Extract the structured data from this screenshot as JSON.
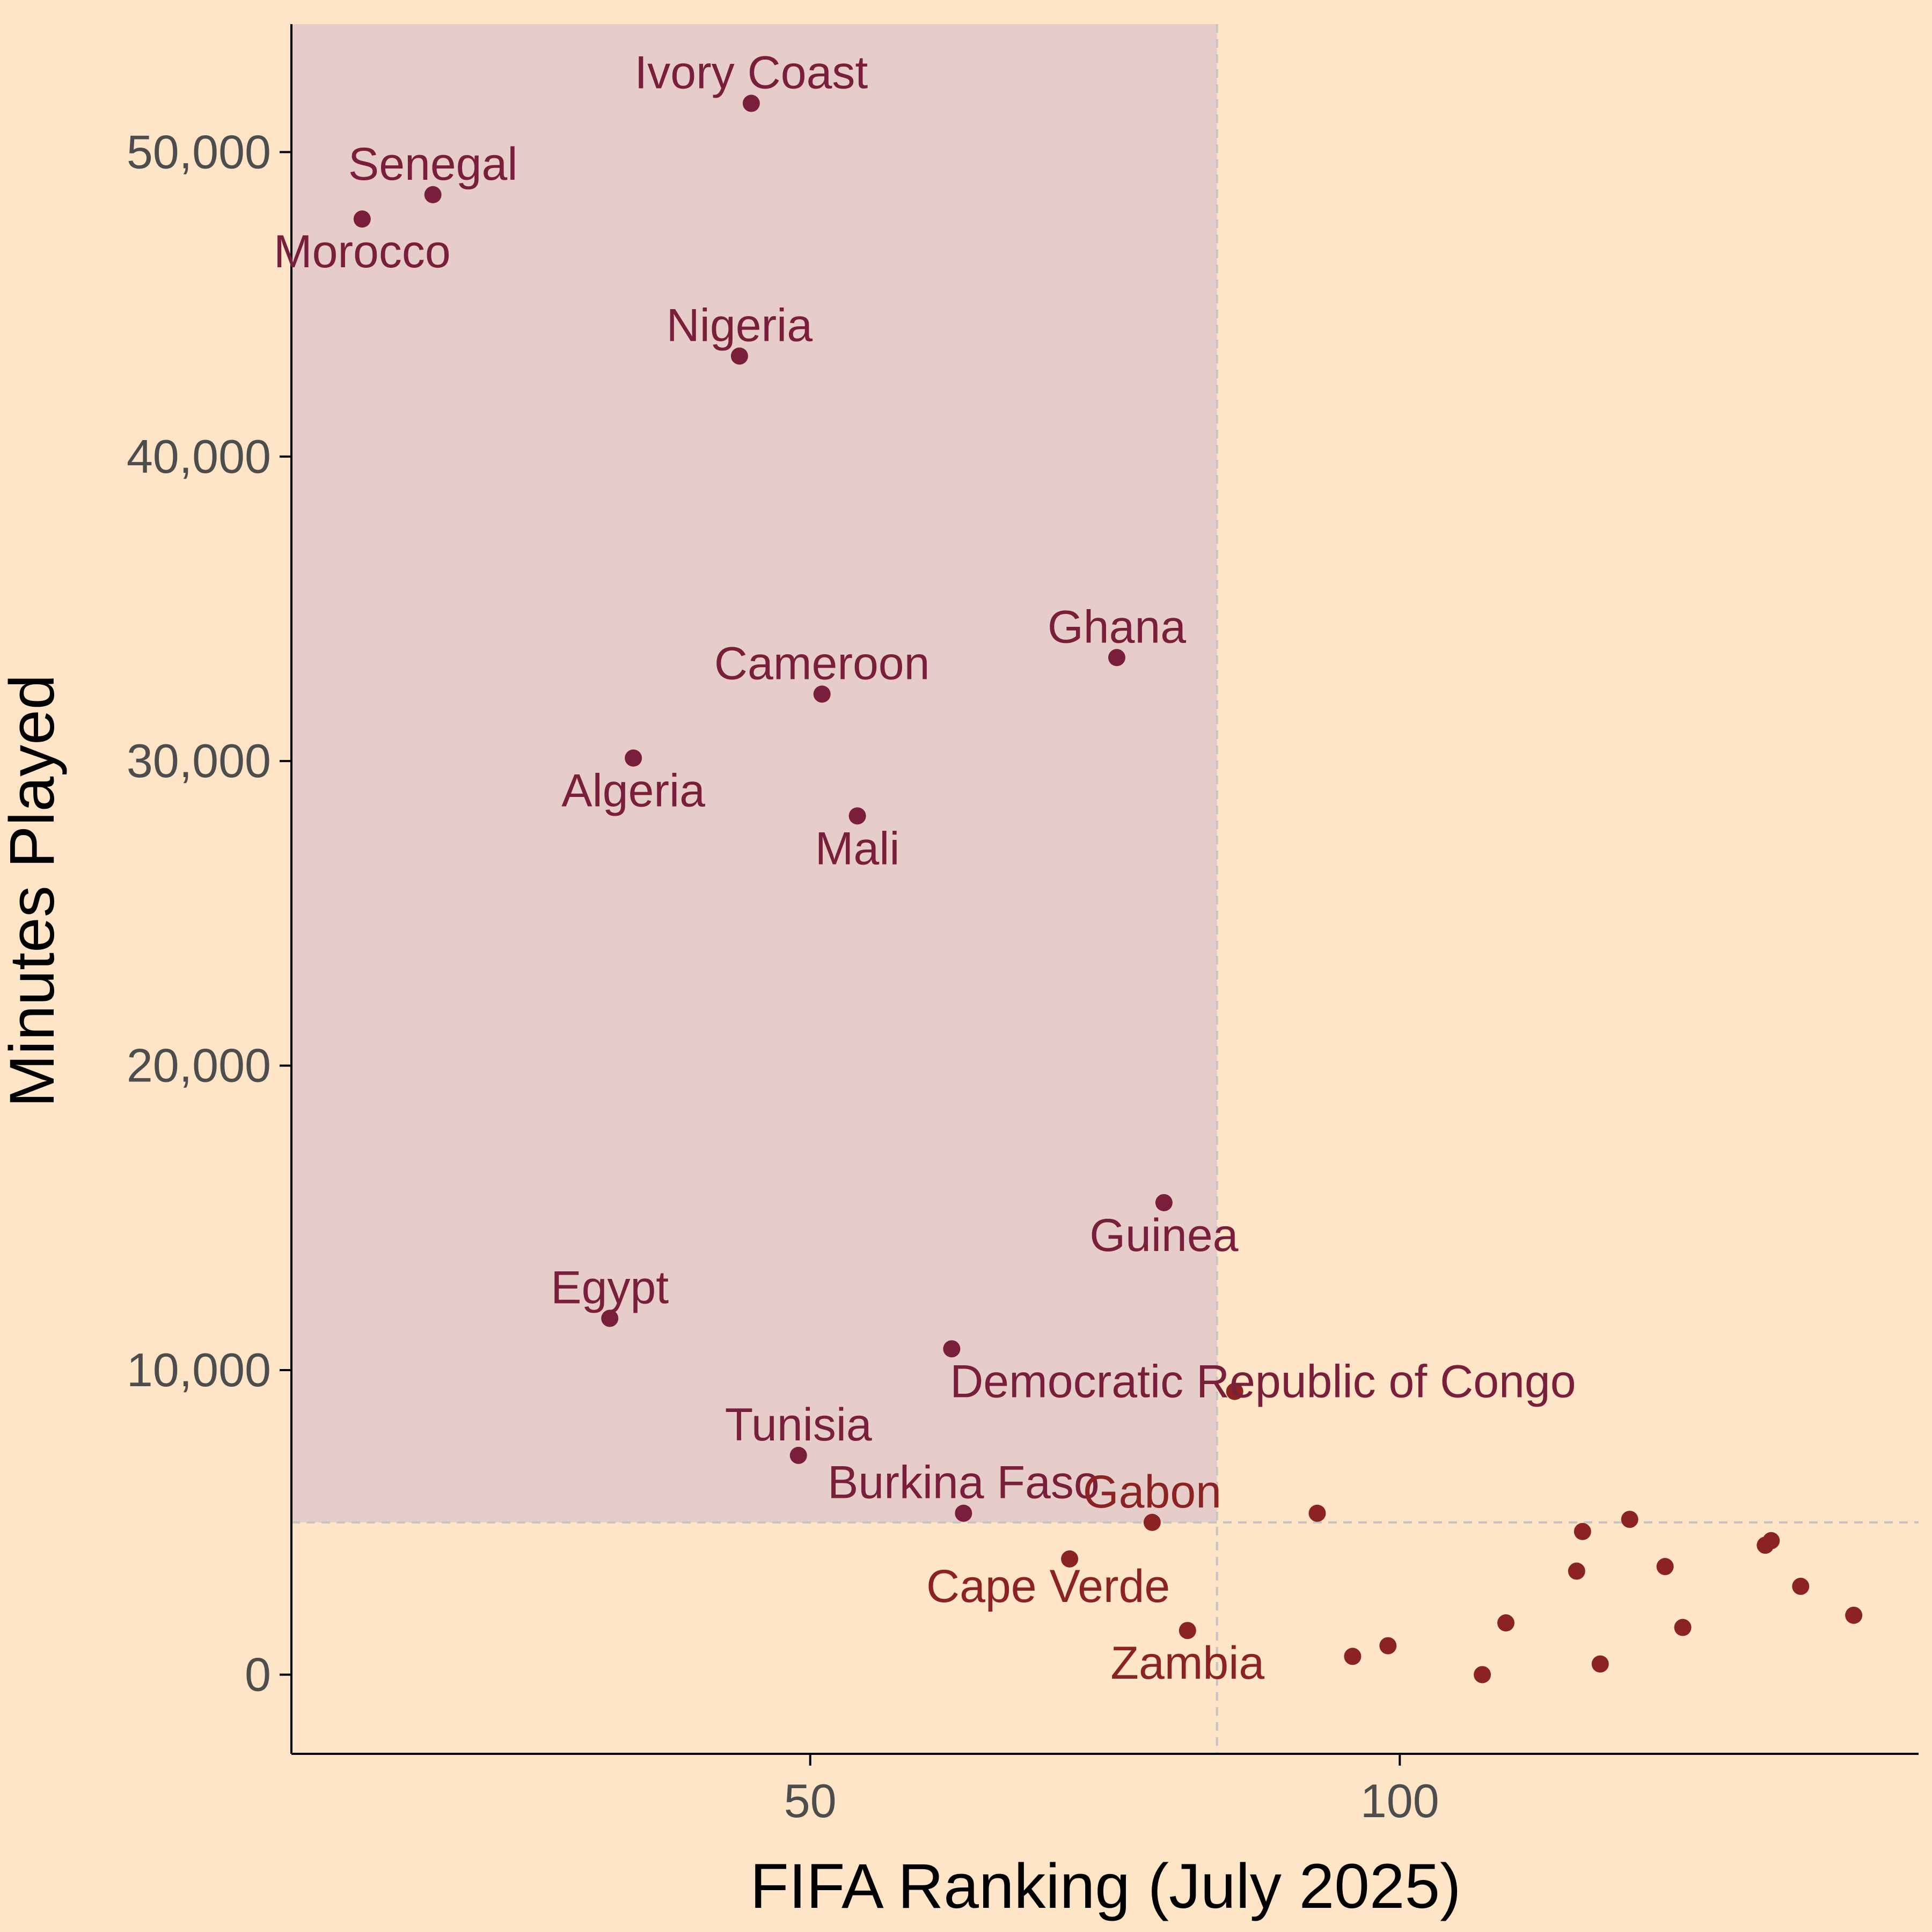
{
  "colors": {
    "background": "#ffe5c7",
    "highlight_region": "#e6cdc9",
    "top_point": "#7a1f3b",
    "bottom_point": "#8b2323",
    "reference_line": "#c4c4c4",
    "axis": "#000000",
    "tick_text": "#4d4d4d"
  },
  "chart_data": {
    "type": "scatter",
    "title": "",
    "xlabel": "FIFA Ranking (July 2025)",
    "ylabel": "Minutes Played",
    "xlim": [
      6,
      144
    ],
    "ylim": [
      -2600,
      54200
    ],
    "x_ticks": [
      {
        "value": 50,
        "label": "50"
      },
      {
        "value": 100,
        "label": "100"
      }
    ],
    "y_ticks": [
      {
        "value": 0,
        "label": "0"
      },
      {
        "value": 10000,
        "label": "10,000"
      },
      {
        "value": 20000,
        "label": "20,000"
      },
      {
        "value": 30000,
        "label": "30,000"
      },
      {
        "value": 40000,
        "label": "40,000"
      },
      {
        "value": 50000,
        "label": "50,000"
      }
    ],
    "grid": false,
    "reference_lines": {
      "x": 84.5,
      "y": 5000
    },
    "highlight_region": {
      "x_max": 84.5,
      "y_min": 5000
    },
    "points": [
      {
        "country": "Morocco",
        "x": 12,
        "y": 47800,
        "group": "top",
        "label_pos": "below"
      },
      {
        "country": "Senegal",
        "x": 18,
        "y": 48600,
        "group": "top",
        "label_pos": "above"
      },
      {
        "country": "Ivory Coast",
        "x": 45,
        "y": 51600,
        "group": "top",
        "label_pos": "above"
      },
      {
        "country": "Nigeria",
        "x": 44,
        "y": 43300,
        "group": "top",
        "label_pos": "above"
      },
      {
        "country": "Ghana",
        "x": 76,
        "y": 33400,
        "group": "top",
        "label_pos": "above"
      },
      {
        "country": "Cameroon",
        "x": 51,
        "y": 32200,
        "group": "top",
        "label_pos": "above"
      },
      {
        "country": "Algeria",
        "x": 35,
        "y": 30100,
        "group": "top",
        "label_pos": "below"
      },
      {
        "country": "Mali",
        "x": 54,
        "y": 28200,
        "group": "top",
        "label_pos": "below"
      },
      {
        "country": "Guinea",
        "x": 80,
        "y": 15500,
        "group": "top",
        "label_pos": "below"
      },
      {
        "country": "Egypt",
        "x": 33,
        "y": 11700,
        "group": "top",
        "label_pos": "above"
      },
      {
        "country": "Democratic Republic of Congo",
        "x": 62,
        "y": 10700,
        "group": "top",
        "label_pos": "below-right"
      },
      {
        "country": "Tunisia",
        "x": 49,
        "y": 7200,
        "group": "top",
        "label_pos": "above"
      },
      {
        "country": "Burkina Faso",
        "x": 63,
        "y": 5300,
        "group": "top",
        "label_pos": "above"
      },
      {
        "country": "",
        "x": 86,
        "y": 9300,
        "group": "bottom",
        "label_pos": "none"
      },
      {
        "country": "Gabon",
        "x": 79,
        "y": 5000,
        "group": "bottom",
        "label_pos": "above"
      },
      {
        "country": "",
        "x": 93,
        "y": 5300,
        "group": "bottom",
        "label_pos": "none"
      },
      {
        "country": "Cape Verde",
        "x": 72,
        "y": 3800,
        "group": "bottom",
        "label_pos": "below-left"
      },
      {
        "country": "Zambia",
        "x": 82,
        "y": 1450,
        "group": "bottom",
        "label_pos": "below"
      },
      {
        "country": "",
        "x": 96,
        "y": 600,
        "group": "bottom",
        "label_pos": "none"
      },
      {
        "country": "",
        "x": 99,
        "y": 950,
        "group": "bottom",
        "label_pos": "none"
      },
      {
        "country": "",
        "x": 107,
        "y": 0,
        "group": "bottom",
        "label_pos": "none"
      },
      {
        "country": "",
        "x": 109,
        "y": 1700,
        "group": "bottom",
        "label_pos": "none"
      },
      {
        "country": "",
        "x": 115,
        "y": 3400,
        "group": "bottom",
        "label_pos": "none"
      },
      {
        "country": "",
        "x": 115.5,
        "y": 4700,
        "group": "bottom",
        "label_pos": "none"
      },
      {
        "country": "",
        "x": 117,
        "y": 350,
        "group": "bottom",
        "label_pos": "none"
      },
      {
        "country": "",
        "x": 119.5,
        "y": 5100,
        "group": "bottom",
        "label_pos": "none"
      },
      {
        "country": "",
        "x": 122.5,
        "y": 3550,
        "group": "bottom",
        "label_pos": "none"
      },
      {
        "country": "",
        "x": 124,
        "y": 1550,
        "group": "bottom",
        "label_pos": "none"
      },
      {
        "country": "",
        "x": 131,
        "y": 4250,
        "group": "bottom",
        "label_pos": "none"
      },
      {
        "country": "",
        "x": 131.5,
        "y": 4400,
        "group": "bottom",
        "label_pos": "none"
      },
      {
        "country": "",
        "x": 134,
        "y": 2900,
        "group": "bottom",
        "label_pos": "none"
      },
      {
        "country": "",
        "x": 138.5,
        "y": 1950,
        "group": "bottom",
        "label_pos": "none"
      }
    ]
  }
}
